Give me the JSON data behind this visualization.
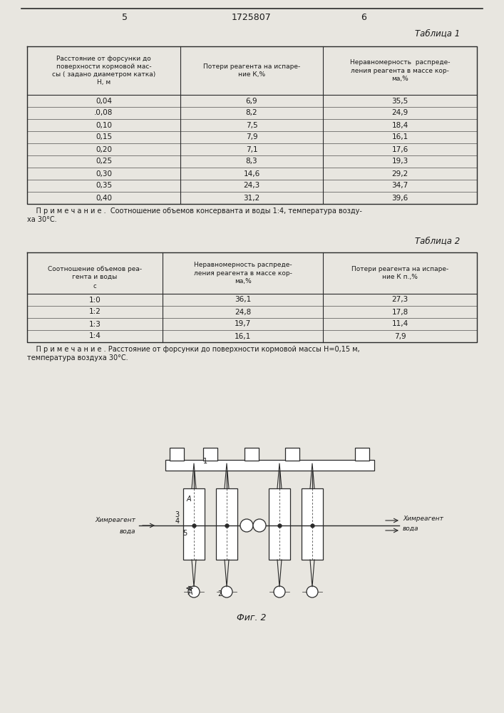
{
  "page_number_left": "5",
  "page_title_center": "1725807",
  "page_number_right": "6",
  "table1_title": "Таблица 1",
  "table1_headers": [
    "Расстояние от форсунки до\nповерхности кормовой мас-\nсы ( задано диаметром катка)\nН, м",
    "Потери реагента на испаре-\nние К,%",
    "Неравномерность  распреде-\nления реагента в массе кор-\nма,%"
  ],
  "table1_rows": [
    [
      "0,04",
      "6,9",
      "35,5"
    ],
    [
      ".0,08",
      "8,2",
      "24,9"
    ],
    [
      "0,10",
      "7,5",
      "18,4"
    ],
    [
      "0,15",
      "7,9",
      "16,1"
    ],
    [
      "0,20",
      "7,1",
      "17,6"
    ],
    [
      "0,25",
      "8,3",
      "19,3"
    ],
    [
      "0,30",
      "14,6",
      "29,2"
    ],
    [
      "0,35",
      "24,3",
      "34,7"
    ],
    [
      "0,40",
      "31,2",
      "39,6"
    ]
  ],
  "table1_note_line1": "    П р и м е ч а н и е .  Соотношение объемов консерванта и воды 1:4, температура возду-",
  "table1_note_line2": "ха 30°С.",
  "table2_title": "Таблица 2",
  "table2_headers": [
    "Соотношение объемов реа-\nгента и воды",
    "Неравномерность распреде-\nления реагента в массе кор-\nма,%",
    "Потери реагента на испаре-\nние К п.,%"
  ],
  "table2_header_extra": "с",
  "table2_rows": [
    [
      "1:0",
      "36,1",
      "27,3"
    ],
    [
      "1:2",
      "24,8",
      "17,8"
    ],
    [
      "1:3",
      "19,7",
      "11,4"
    ],
    [
      "1:4",
      "16,1",
      "7,9"
    ]
  ],
  "table2_note_line1": "    П р и м е ч а н и е . Расстояние от форсунки до поверхности кормовой массы Н=0,15 м,",
  "table2_note_line2": "температура воздуха 30°С.",
  "fig_caption": "Фиг. 2",
  "bg_color": "#e8e6e0",
  "text_color": "#1a1a1a",
  "line_color": "#2a2a2a"
}
